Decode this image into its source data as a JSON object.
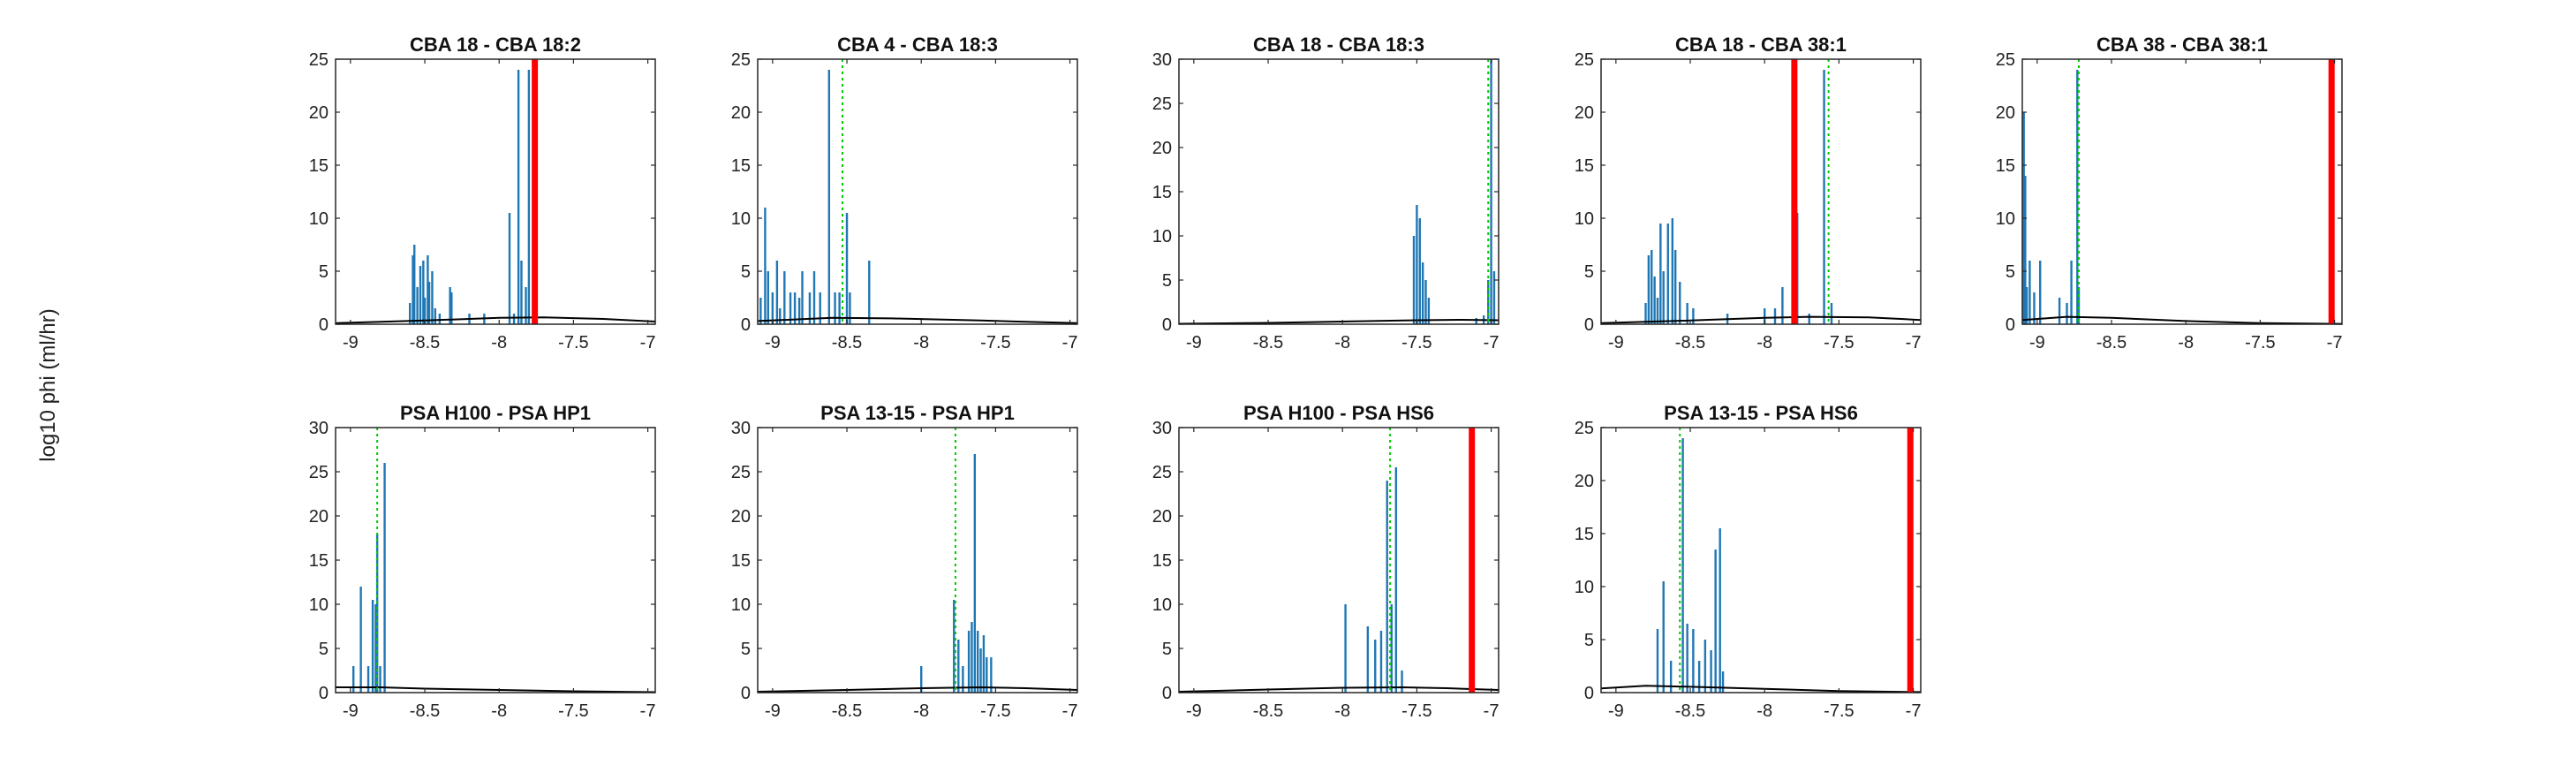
{
  "figure": {
    "ylabel": "log10 phi (ml/hr)",
    "colors": {
      "hist": "#1f77b4",
      "fit": "#000000",
      "red": "#ff0000",
      "green": "#00cc00",
      "axis": "#262626"
    }
  },
  "chart_data": [
    {
      "type": "bar",
      "title": "CBA 18 - CBA 18:2",
      "xlim": [
        -9.1,
        -6.95
      ],
      "ylim": [
        0,
        25
      ],
      "xticks": [
        -9,
        -8.5,
        -8,
        -7.5,
        -7
      ],
      "yticks": [
        0,
        5,
        10,
        15,
        20,
        25
      ],
      "xtick_labels": [
        "-9",
        "-8.5",
        "-8",
        "-7.5",
        "-7"
      ],
      "ytick_labels": [
        "0",
        "5",
        "10",
        "15",
        "20",
        "25"
      ],
      "bars": [
        [
          -8.6,
          2
        ],
        [
          -8.58,
          6.5
        ],
        [
          -8.57,
          7.5
        ],
        [
          -8.55,
          3.5
        ],
        [
          -8.53,
          5.5
        ],
        [
          -8.51,
          6
        ],
        [
          -8.5,
          2.5
        ],
        [
          -8.48,
          6.5
        ],
        [
          -8.47,
          4
        ],
        [
          -8.45,
          5
        ],
        [
          -8.43,
          1.5
        ],
        [
          -8.4,
          1
        ],
        [
          -8.33,
          3.5
        ],
        [
          -8.32,
          3
        ],
        [
          -8.2,
          1
        ],
        [
          -8.1,
          1
        ],
        [
          -7.93,
          10.5
        ],
        [
          -7.9,
          1
        ],
        [
          -7.87,
          24
        ],
        [
          -7.85,
          6
        ],
        [
          -7.82,
          3.5
        ],
        [
          -7.8,
          24
        ]
      ],
      "curve": [
        [
          -9.1,
          0.1
        ],
        [
          -8.5,
          0.35
        ],
        [
          -8,
          0.6
        ],
        [
          -7.7,
          0.65
        ],
        [
          -7.3,
          0.5
        ],
        [
          -6.95,
          0.25
        ]
      ],
      "red_x": -7.76,
      "green_x": null
    },
    {
      "type": "bar",
      "title": "CBA 4 - CBA 18:3",
      "xlim": [
        -9.1,
        -6.95
      ],
      "ylim": [
        0,
        25
      ],
      "xticks": [
        -9,
        -8.5,
        -8,
        -7.5,
        -7
      ],
      "yticks": [
        0,
        5,
        10,
        15,
        20,
        25
      ],
      "xtick_labels": [
        "-9",
        "-8.5",
        "-8",
        "-7.5",
        "-7"
      ],
      "ytick_labels": [
        "0",
        "5",
        "10",
        "15",
        "20",
        "25"
      ],
      "bars": [
        [
          -9.08,
          2.5
        ],
        [
          -9.05,
          11
        ],
        [
          -9.03,
          5
        ],
        [
          -9.0,
          3
        ],
        [
          -8.97,
          6
        ],
        [
          -8.95,
          1.5
        ],
        [
          -8.92,
          5
        ],
        [
          -8.88,
          3
        ],
        [
          -8.85,
          3
        ],
        [
          -8.82,
          2.5
        ],
        [
          -8.8,
          5
        ],
        [
          -8.75,
          3
        ],
        [
          -8.72,
          5
        ],
        [
          -8.68,
          3
        ],
        [
          -8.62,
          24
        ],
        [
          -8.58,
          3
        ],
        [
          -8.55,
          3
        ],
        [
          -8.5,
          10.5
        ],
        [
          -8.48,
          3
        ],
        [
          -8.35,
          6
        ]
      ],
      "curve": [
        [
          -9.1,
          0.3
        ],
        [
          -8.6,
          0.6
        ],
        [
          -8.2,
          0.55
        ],
        [
          -7.6,
          0.35
        ],
        [
          -6.95,
          0.1
        ]
      ],
      "red_x": null,
      "green_x": -8.53
    },
    {
      "type": "bar",
      "title": "CBA 18 - CBA 18:3",
      "xlim": [
        -9.1,
        -6.95
      ],
      "ylim": [
        0,
        30
      ],
      "xticks": [
        -9,
        -8.5,
        -8,
        -7.5,
        -7
      ],
      "yticks": [
        0,
        5,
        10,
        15,
        20,
        25,
        30
      ],
      "xtick_labels": [
        "-9",
        "-8.5",
        "-8",
        "-7.5",
        "-7"
      ],
      "ytick_labels": [
        "0",
        "5",
        "10",
        "15",
        "20",
        "25",
        "30"
      ],
      "bars": [
        [
          -7.52,
          10
        ],
        [
          -7.5,
          13.5
        ],
        [
          -7.48,
          12
        ],
        [
          -7.46,
          7
        ],
        [
          -7.44,
          5
        ],
        [
          -7.42,
          3
        ],
        [
          -7.1,
          0.7
        ],
        [
          -7.05,
          1
        ],
        [
          -7.02,
          5
        ],
        [
          -7.0,
          30
        ],
        [
          -6.98,
          6
        ]
      ],
      "curve": [
        [
          -9.1,
          0.05
        ],
        [
          -8.5,
          0.15
        ],
        [
          -8,
          0.3
        ],
        [
          -7.5,
          0.45
        ],
        [
          -7.2,
          0.5
        ],
        [
          -6.95,
          0.45
        ]
      ],
      "red_x": null,
      "green_x": -7.02
    },
    {
      "type": "bar",
      "title": "CBA 18 - CBA 38:1",
      "xlim": [
        -9.1,
        -6.95
      ],
      "ylim": [
        0,
        25
      ],
      "xticks": [
        -9,
        -8.5,
        -8,
        -7.5,
        -7
      ],
      "yticks": [
        0,
        5,
        10,
        15,
        20,
        25
      ],
      "xtick_labels": [
        "-9",
        "-8.5",
        "-8",
        "-7.5",
        "-7"
      ],
      "ytick_labels": [
        "0",
        "5",
        "10",
        "15",
        "20",
        "25"
      ],
      "bars": [
        [
          -8.8,
          2
        ],
        [
          -8.78,
          6.5
        ],
        [
          -8.76,
          7
        ],
        [
          -8.74,
          4.5
        ],
        [
          -8.72,
          2.5
        ],
        [
          -8.7,
          9.5
        ],
        [
          -8.68,
          5
        ],
        [
          -8.65,
          9.5
        ],
        [
          -8.62,
          10
        ],
        [
          -8.6,
          7
        ],
        [
          -8.57,
          4
        ],
        [
          -8.52,
          2
        ],
        [
          -8.48,
          1.5
        ],
        [
          -8.25,
          1
        ],
        [
          -8.0,
          1.5
        ],
        [
          -7.93,
          1.5
        ],
        [
          -7.88,
          3.5
        ],
        [
          -7.78,
          10.5
        ],
        [
          -7.7,
          1
        ],
        [
          -7.6,
          24
        ],
        [
          -7.55,
          2
        ]
      ],
      "curve": [
        [
          -9.1,
          0.1
        ],
        [
          -8.5,
          0.35
        ],
        [
          -8,
          0.6
        ],
        [
          -7.7,
          0.7
        ],
        [
          -7.3,
          0.65
        ],
        [
          -6.95,
          0.4
        ]
      ],
      "red_x": -7.8,
      "green_x": -7.57
    },
    {
      "type": "bar",
      "title": "CBA 38 - CBA 38:1",
      "xlim": [
        -9.1,
        -6.95
      ],
      "ylim": [
        0,
        25
      ],
      "xticks": [
        -9,
        -8.5,
        -8,
        -7.5,
        -7
      ],
      "yticks": [
        0,
        5,
        10,
        15,
        20,
        25
      ],
      "xtick_labels": [
        "-9",
        "-8.5",
        "-8",
        "-7.5",
        "-7"
      ],
      "ytick_labels": [
        "0",
        "5",
        "10",
        "15",
        "20",
        "25"
      ],
      "bars": [
        [
          -9.09,
          20
        ],
        [
          -9.08,
          14
        ],
        [
          -9.07,
          3.5
        ],
        [
          -9.05,
          6
        ],
        [
          -9.02,
          3
        ],
        [
          -8.98,
          6
        ],
        [
          -8.85,
          2.5
        ],
        [
          -8.8,
          2
        ],
        [
          -8.77,
          6
        ],
        [
          -8.73,
          24
        ],
        [
          -8.72,
          3.5
        ]
      ],
      "curve": [
        [
          -9.1,
          0.4
        ],
        [
          -8.8,
          0.7
        ],
        [
          -8.5,
          0.6
        ],
        [
          -8,
          0.3
        ],
        [
          -7.5,
          0.1
        ],
        [
          -6.95,
          0.03
        ]
      ],
      "red_x": -7.02,
      "green_x": -8.72
    },
    {
      "type": "bar",
      "title": "PSA H100 - PSA HP1",
      "xlim": [
        -9.1,
        -6.95
      ],
      "ylim": [
        0,
        30
      ],
      "xticks": [
        -9,
        -8.5,
        -8,
        -7.5,
        -7
      ],
      "yticks": [
        0,
        5,
        10,
        15,
        20,
        25,
        30
      ],
      "xtick_labels": [
        "-9",
        "-8.5",
        "-8",
        "-7.5",
        "-7"
      ],
      "ytick_labels": [
        "0",
        "5",
        "10",
        "15",
        "20",
        "25",
        "30"
      ],
      "bars": [
        [
          -8.98,
          3
        ],
        [
          -8.93,
          12
        ],
        [
          -8.88,
          3
        ],
        [
          -8.85,
          10.5
        ],
        [
          -8.83,
          10
        ],
        [
          -8.82,
          18
        ],
        [
          -8.8,
          3
        ],
        [
          -8.77,
          26
        ]
      ],
      "curve": [
        [
          -9.1,
          0.6
        ],
        [
          -8.8,
          0.6
        ],
        [
          -8.5,
          0.45
        ],
        [
          -8,
          0.3
        ],
        [
          -7.5,
          0.15
        ],
        [
          -6.95,
          0.05
        ]
      ],
      "red_x": null,
      "green_x": -8.82
    },
    {
      "type": "bar",
      "title": "PSA 13-15 - PSA HP1",
      "xlim": [
        -9.1,
        -6.95
      ],
      "ylim": [
        0,
        30
      ],
      "xticks": [
        -9,
        -8.5,
        -8,
        -7.5,
        -7
      ],
      "yticks": [
        0,
        5,
        10,
        15,
        20,
        25,
        30
      ],
      "xtick_labels": [
        "-9",
        "-8.5",
        "-8",
        "-7.5",
        "-7"
      ],
      "ytick_labels": [
        "0",
        "5",
        "10",
        "15",
        "20",
        "25",
        "30"
      ],
      "bars": [
        [
          -8.0,
          3
        ],
        [
          -7.78,
          10.5
        ],
        [
          -7.75,
          6
        ],
        [
          -7.72,
          3
        ],
        [
          -7.68,
          7
        ],
        [
          -7.66,
          8
        ],
        [
          -7.64,
          27
        ],
        [
          -7.62,
          7
        ],
        [
          -7.6,
          5
        ],
        [
          -7.58,
          6.5
        ],
        [
          -7.56,
          4
        ],
        [
          -7.53,
          4
        ]
      ],
      "curve": [
        [
          -9.1,
          0.1
        ],
        [
          -8.5,
          0.3
        ],
        [
          -8,
          0.5
        ],
        [
          -7.6,
          0.6
        ],
        [
          -7.3,
          0.5
        ],
        [
          -6.95,
          0.3
        ]
      ],
      "red_x": null,
      "green_x": -7.77
    },
    {
      "type": "bar",
      "title": "PSA H100 - PSA HS6",
      "xlim": [
        -9.1,
        -6.95
      ],
      "ylim": [
        0,
        30
      ],
      "xticks": [
        -9,
        -8.5,
        -8,
        -7.5,
        -7
      ],
      "yticks": [
        0,
        5,
        10,
        15,
        20,
        25,
        30
      ],
      "xtick_labels": [
        "-9",
        "-8.5",
        "-8",
        "-7.5",
        "-7"
      ],
      "ytick_labels": [
        "0",
        "5",
        "10",
        "15",
        "20",
        "25",
        "30"
      ],
      "bars": [
        [
          -7.98,
          10
        ],
        [
          -7.83,
          7.5
        ],
        [
          -7.78,
          6
        ],
        [
          -7.74,
          7
        ],
        [
          -7.7,
          24
        ],
        [
          -7.67,
          10
        ],
        [
          -7.64,
          25.5
        ],
        [
          -7.6,
          2.5
        ]
      ],
      "curve": [
        [
          -9.1,
          0.1
        ],
        [
          -8.5,
          0.35
        ],
        [
          -8,
          0.55
        ],
        [
          -7.6,
          0.6
        ],
        [
          -7.3,
          0.5
        ],
        [
          -6.95,
          0.3
        ]
      ],
      "red_x": -7.13,
      "green_x": -7.68
    },
    {
      "type": "bar",
      "title": "PSA 13-15 - PSA HS6",
      "xlim": [
        -9.1,
        -6.95
      ],
      "ylim": [
        0,
        25
      ],
      "xticks": [
        -9,
        -8.5,
        -8,
        -7.5,
        -7
      ],
      "yticks": [
        0,
        5,
        10,
        15,
        20,
        25
      ],
      "xtick_labels": [
        "-9",
        "-8.5",
        "-8",
        "-7.5",
        "-7"
      ],
      "ytick_labels": [
        "0",
        "5",
        "10",
        "15",
        "20",
        "25"
      ],
      "bars": [
        [
          -8.72,
          6
        ],
        [
          -8.68,
          10.5
        ],
        [
          -8.63,
          3
        ],
        [
          -8.55,
          24
        ],
        [
          -8.52,
          6.5
        ],
        [
          -8.48,
          6
        ],
        [
          -8.44,
          3
        ],
        [
          -8.4,
          5
        ],
        [
          -8.36,
          4
        ],
        [
          -8.33,
          13.5
        ],
        [
          -8.3,
          15.5
        ],
        [
          -8.28,
          2
        ]
      ],
      "curve": [
        [
          -9.1,
          0.4
        ],
        [
          -8.8,
          0.65
        ],
        [
          -8.5,
          0.55
        ],
        [
          -8,
          0.35
        ],
        [
          -7.5,
          0.15
        ],
        [
          -6.95,
          0.05
        ]
      ],
      "red_x": -7.02,
      "green_x": -8.57
    }
  ]
}
